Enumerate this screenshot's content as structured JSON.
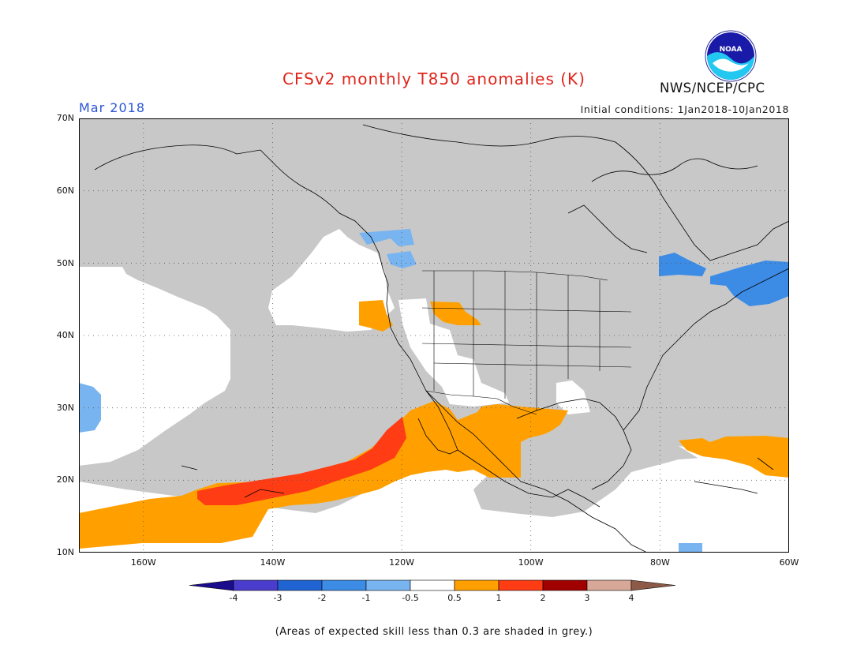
{
  "title": "CFSv2 monthly T850 anomalies (K)",
  "month": "Mar 2018",
  "initial_conditions": "Initial conditions: 1Jan2018-10Jan2018",
  "organization": "NWS/NCEP/CPC",
  "logo_text": "NOAA",
  "footnote": "(Areas of expected skill less than 0.3 are shaded in grey.)",
  "lat_labels": [
    "70N",
    "60N",
    "50N",
    "40N",
    "30N",
    "20N",
    "10N"
  ],
  "lon_labels": [
    "160W",
    "140W",
    "120W",
    "100W",
    "80W",
    "60W"
  ],
  "colorbar": {
    "labels": [
      "-4",
      "-3",
      "-2",
      "-1",
      "-0.5",
      "0.5",
      "1",
      "2",
      "3",
      "4"
    ],
    "colors": [
      "#1a0c8c",
      "#4a3ccc",
      "#1f64d2",
      "#3c8ce6",
      "#78b4f0",
      "#ffffff",
      "#ffa000",
      "#ff3c14",
      "#a00000",
      "#d7a898",
      "#8c5a46"
    ]
  },
  "map": {
    "lon_range": [
      -170,
      -60
    ],
    "lat_range": [
      10,
      70
    ],
    "colors": {
      "low_skill_grey": "#c8c8c8",
      "neutral": "#ffffff",
      "warm_0_5_to_1": "#ffa000",
      "warm_1_to_2": "#ff3c14",
      "cool_-1_to_-0_5": "#78b4f0",
      "cool_-2_to_-1": "#3c8ce6"
    }
  }
}
